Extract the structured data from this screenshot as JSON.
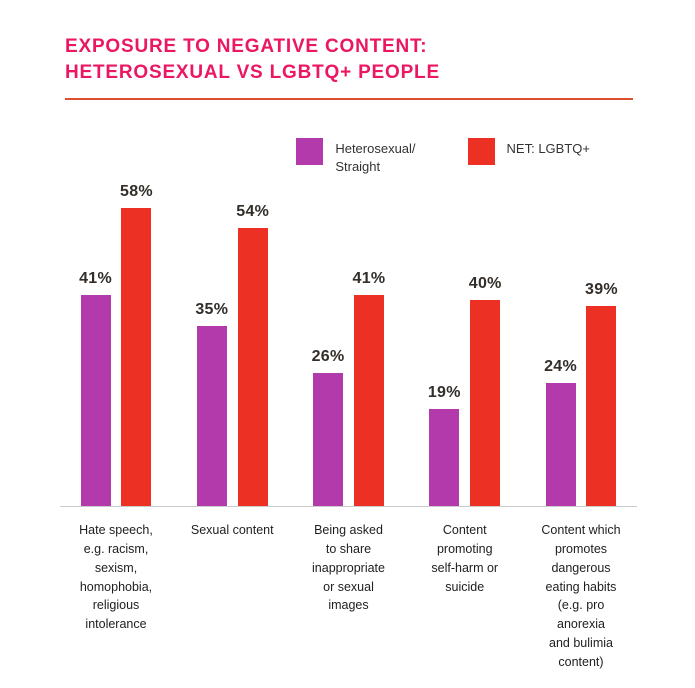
{
  "title": {
    "line1": "EXPOSURE TO NEGATIVE CONTENT:",
    "line2": "HETEROSEXUAL VS LGBTQ+ PEOPLE"
  },
  "colors": {
    "title": "#EC1762",
    "divider": "#DD4F2E",
    "purple": "#B33AAB",
    "red": "#ED3024",
    "value_label": "#332e29",
    "baseline": "#cccccc"
  },
  "legend": {
    "heterosexual": "Heterosexual/\nStraight",
    "lgbtq": "NET: LGBTQ+"
  },
  "chart_data": {
    "type": "bar",
    "title": "EXPOSURE TO NEGATIVE CONTENT: HETEROSEXUAL VS LGBTQ+ PEOPLE",
    "categories": [
      "Hate speech,\ne.g. racism,\nsexism,\nhomophobia,\nreligious\nintolerance",
      "Sexual content",
      "Being asked\nto share\ninappropriate\nor sexual\nimages",
      "Content\npromoting\nself-harm or\nsuicide",
      "Content which\npromotes\ndangerous\neating habits\n(e.g. pro\nanorexia\nand bulimia\ncontent)"
    ],
    "series": [
      {
        "name": "Heterosexual/ Straight",
        "color": "#B33AAB",
        "values": [
          41,
          35,
          26,
          19,
          24
        ]
      },
      {
        "name": "NET: LGBTQ+",
        "color": "#ED3024",
        "values": [
          58,
          54,
          41,
          40,
          39
        ]
      }
    ],
    "value_suffix": "%",
    "ylim": [
      0,
      60
    ],
    "grid": false,
    "legend_position": "top-right",
    "xlabel": "",
    "ylabel": ""
  }
}
